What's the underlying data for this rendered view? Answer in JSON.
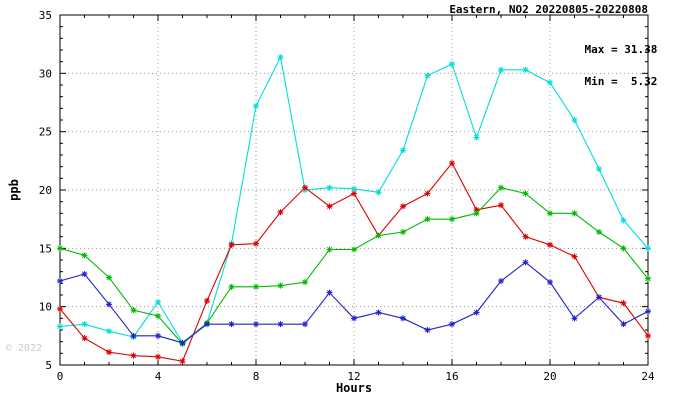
{
  "watermark": "© 2022",
  "chart_data": {
    "type": "line",
    "title": "Eastern, NO2 20220805-20220808",
    "xlabel": "Hours",
    "ylabel": "ppb",
    "xlim": [
      0,
      24
    ],
    "ylim": [
      5,
      35
    ],
    "xticks": [
      0,
      4,
      8,
      12,
      16,
      20,
      24
    ],
    "yticks": [
      5,
      10,
      15,
      20,
      25,
      30,
      35
    ],
    "minor_tick_step": 1,
    "grid": "dotted",
    "legend": "none",
    "annotations": {
      "max_label": "Max = 31.38",
      "min_label": "Min =  5.32"
    },
    "x": [
      0,
      1,
      2,
      3,
      4,
      5,
      6,
      7,
      8,
      9,
      10,
      11,
      12,
      13,
      14,
      15,
      16,
      17,
      18,
      19,
      20,
      21,
      22,
      23,
      24
    ],
    "series": [
      {
        "name": "cyan-series",
        "color": "#00dddd",
        "values": [
          8.3,
          8.5,
          7.9,
          7.4,
          10.4,
          6.9,
          8.6,
          15.4,
          27.2,
          31.38,
          20.0,
          20.2,
          20.1,
          19.8,
          23.4,
          29.8,
          30.8,
          24.5,
          30.3,
          30.3,
          29.2,
          26.0,
          21.8,
          17.4,
          15.0
        ]
      },
      {
        "name": "red-series",
        "color": "#dd0000",
        "values": [
          9.8,
          7.3,
          6.1,
          5.8,
          5.7,
          5.32,
          10.5,
          15.3,
          15.4,
          18.1,
          20.2,
          18.6,
          19.7,
          16.1,
          18.6,
          19.7,
          22.3,
          18.3,
          18.7,
          16.0,
          15.3,
          14.3,
          10.8,
          10.3,
          7.5
        ]
      },
      {
        "name": "green-series",
        "color": "#00bb00",
        "values": [
          15.0,
          14.4,
          12.5,
          9.7,
          9.2,
          6.8,
          8.6,
          11.7,
          11.7,
          11.8,
          12.1,
          14.9,
          14.9,
          16.1,
          16.4,
          17.5,
          17.5,
          18.0,
          20.2,
          19.7,
          18.0,
          18.0,
          16.4,
          15.0,
          12.4
        ]
      },
      {
        "name": "blue-series",
        "color": "#2222cc",
        "values": [
          12.2,
          12.8,
          10.2,
          7.5,
          7.5,
          6.9,
          8.5,
          8.5,
          8.5,
          8.5,
          8.5,
          11.2,
          9.0,
          9.5,
          9.0,
          8.0,
          8.5,
          9.5,
          12.2,
          13.8,
          12.1,
          9.0,
          10.8,
          8.5,
          9.6
        ]
      }
    ]
  }
}
